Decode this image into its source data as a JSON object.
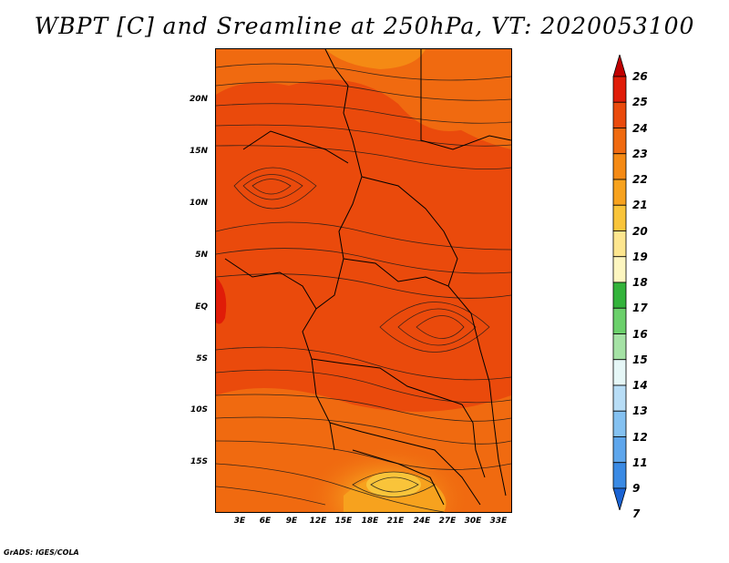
{
  "title": "WBPT [C] and Sreamline at 250hPa, VT: 2020053100",
  "footer": "GrADS: IGES/COLA",
  "map": {
    "lat_labels": [
      "20N",
      "15N",
      "10N",
      "5N",
      "EQ",
      "5S",
      "10S",
      "15S"
    ],
    "lon_labels": [
      "3E",
      "6E",
      "9E",
      "12E",
      "15E",
      "18E",
      "21E",
      "24E",
      "27E",
      "30E",
      "33E"
    ],
    "fill_colors": {
      "dominant": "#ea4a0c",
      "orange": "#f06a10",
      "light_orange": "#f7a21e",
      "yellow_orange": "#f9c43a"
    }
  },
  "colorbar": {
    "labels": [
      "26",
      "25",
      "24",
      "23",
      "22",
      "21",
      "20",
      "19",
      "18",
      "17",
      "16",
      "15",
      "14",
      "13",
      "12",
      "11",
      "9",
      "7"
    ],
    "colors": [
      "#c00000",
      "#e01c08",
      "#ea4a0c",
      "#f06a10",
      "#f58a14",
      "#f7a21e",
      "#f9c43a",
      "#fde68f",
      "#fdf6c0",
      "#33b33b",
      "#6bd06b",
      "#a5e2a5",
      "#e6f7f7",
      "#b8ddf6",
      "#84c1f1",
      "#5ea6ec",
      "#3a8ae4",
      "#1a63d4"
    ]
  }
}
